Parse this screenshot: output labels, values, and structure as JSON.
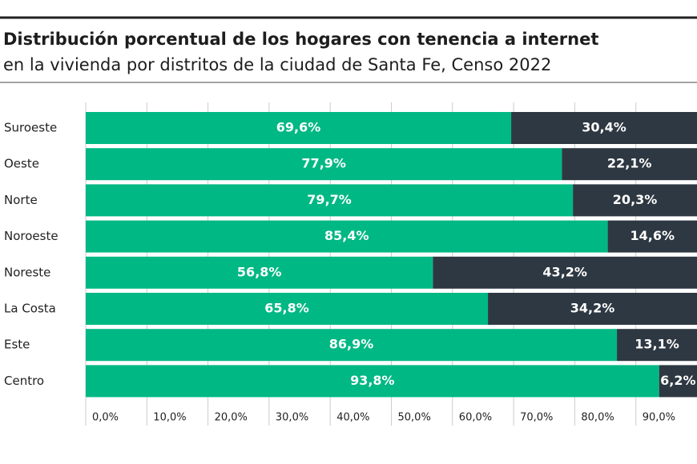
{
  "chart_data": {
    "type": "stacked-bar-horizontal",
    "title": "Distribución porcentual de los hogares con tenencia a internet",
    "subtitle": "en la vivienda por distritos de la ciudad de Santa Fe, Censo 2022",
    "categories": [
      "Suroeste",
      "Oeste",
      "Norte",
      "Noroeste",
      "Noreste",
      "La Costa",
      "Este",
      "Centro"
    ],
    "series": [
      {
        "color": "#00b884",
        "values": [
          69.6,
          77.9,
          79.7,
          85.4,
          56.8,
          65.8,
          86.9,
          93.8
        ],
        "value_labels": [
          "69,6%",
          "77,9%",
          "79,7%",
          "85,4%",
          "56,8%",
          "65,8%",
          "86,9%",
          "93,8%"
        ]
      },
      {
        "color": "#2e3842",
        "values": [
          30.4,
          22.1,
          20.3,
          14.6,
          43.2,
          34.2,
          13.1,
          6.2
        ],
        "value_labels": [
          "30,4%",
          "22,1%",
          "20,3%",
          "14,6%",
          "43,2%",
          "34,2%",
          "13,1%",
          "6,2%"
        ]
      }
    ],
    "xlim": [
      0,
      100
    ],
    "xticks": [
      {
        "value": 0,
        "label": "0,0%"
      },
      {
        "value": 10,
        "label": "10,0%"
      },
      {
        "value": 20,
        "label": "20,0%"
      },
      {
        "value": 30,
        "label": "30,0%"
      },
      {
        "value": 40,
        "label": "40,0%"
      },
      {
        "value": 50,
        "label": "50,0%"
      },
      {
        "value": 60,
        "label": "60,0%"
      },
      {
        "value": 70,
        "label": "70,0%"
      },
      {
        "value": 80,
        "label": "80,0%"
      },
      {
        "value": 90,
        "label": "90,0%"
      }
    ],
    "grid": true
  }
}
